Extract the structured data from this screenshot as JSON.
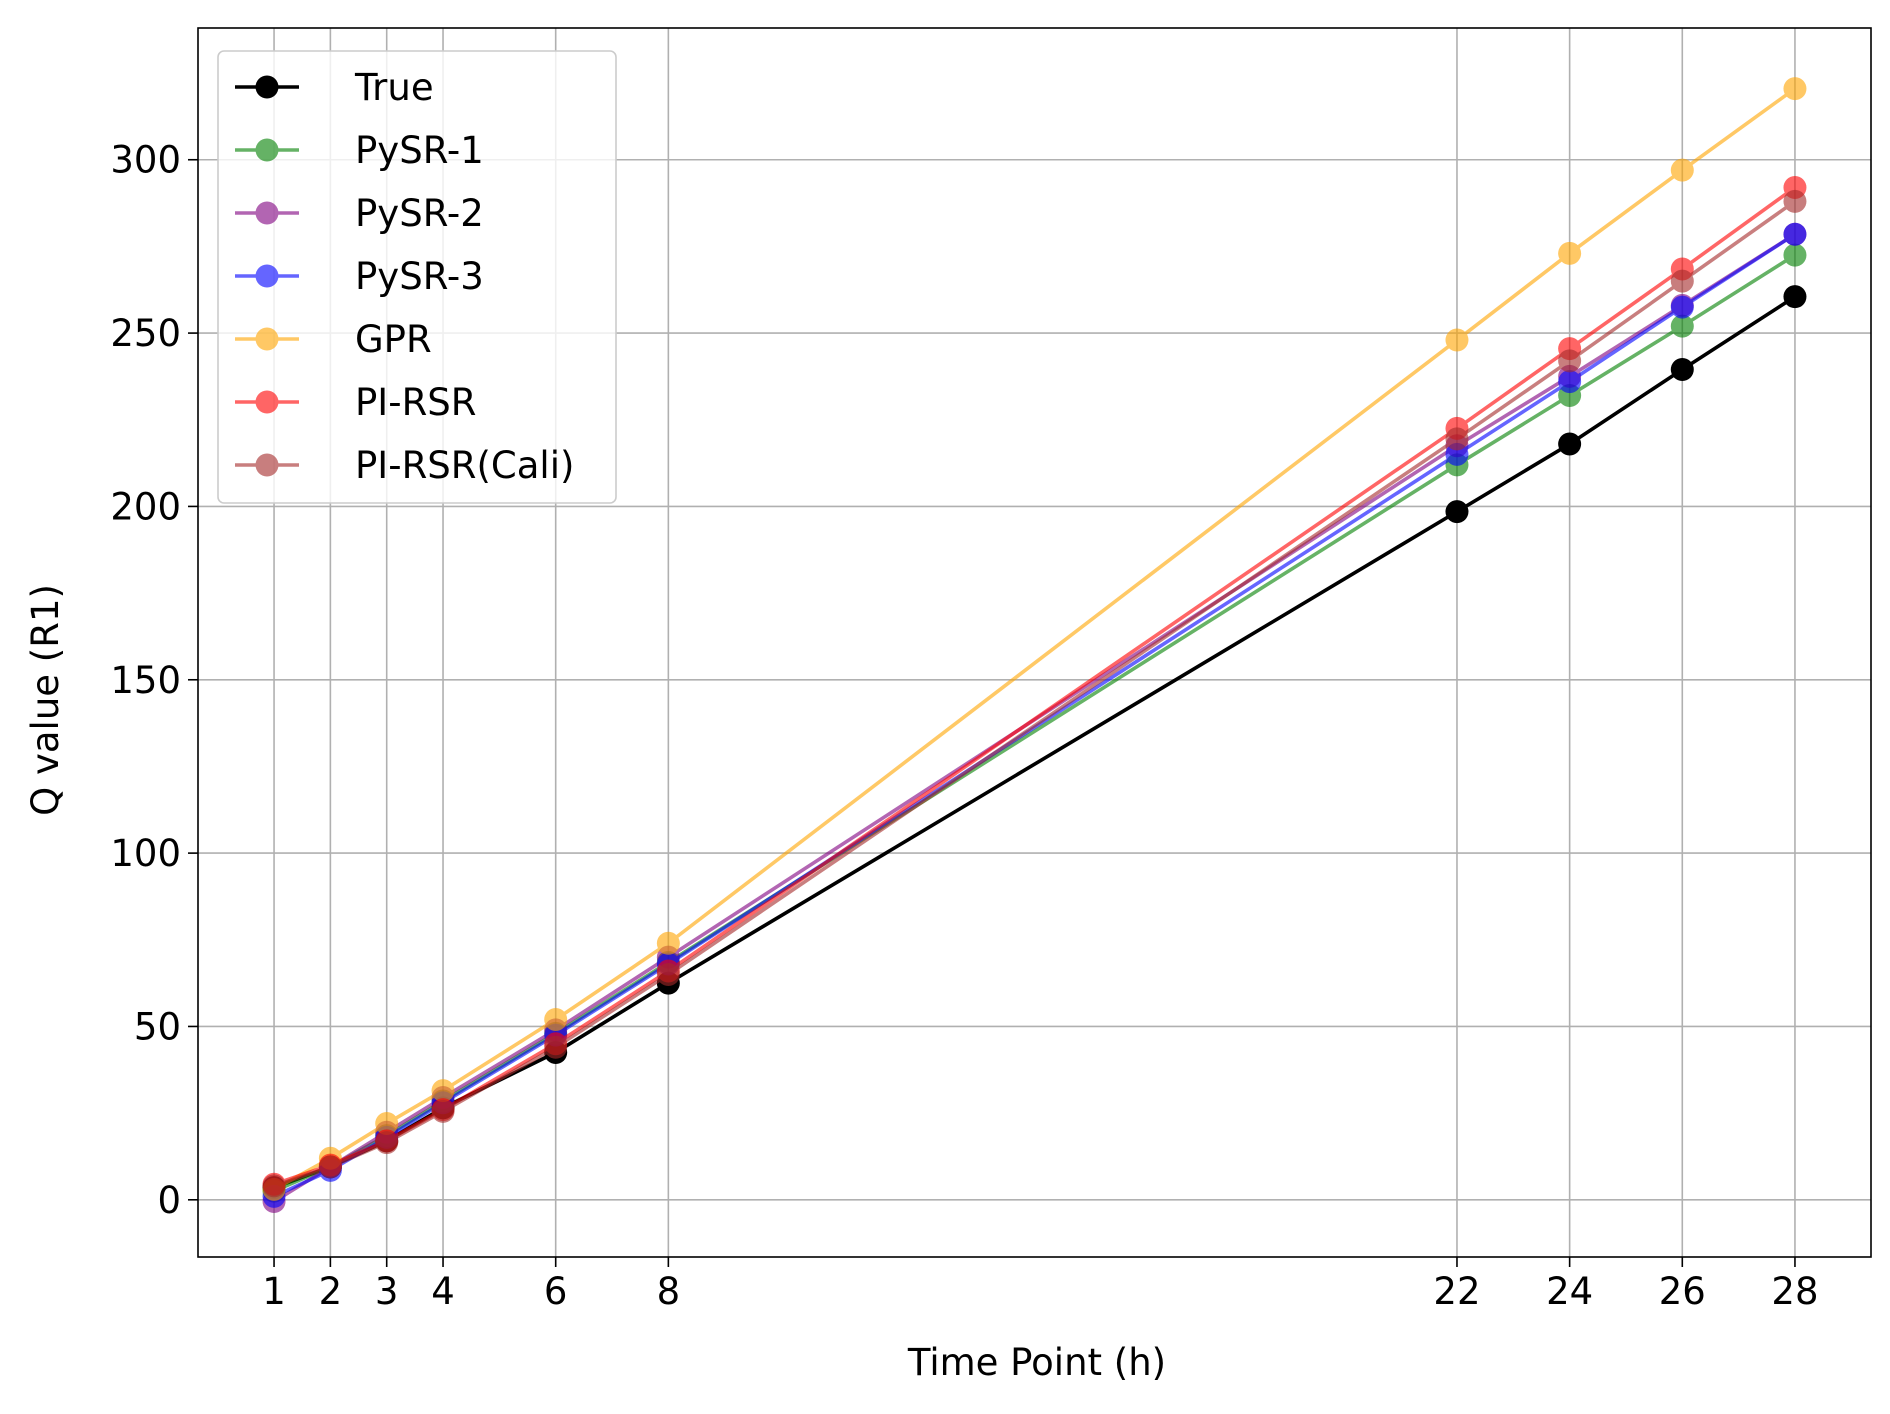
{
  "chart_data": {
    "type": "line",
    "title": "",
    "xlabel": "Time Point (h)",
    "ylabel": "Q value (R1)",
    "x": [
      1,
      2,
      3,
      4,
      6,
      8,
      22,
      24,
      26,
      28
    ],
    "xticks": [
      1,
      2,
      3,
      4,
      6,
      8,
      22,
      24,
      26,
      28
    ],
    "yticks": [
      0,
      50,
      100,
      150,
      200,
      250,
      300
    ],
    "xlim": [
      -0.35,
      29.35
    ],
    "ylim": [
      -16.5,
      338
    ],
    "grid": true,
    "legend_position": "top-left",
    "series": [
      {
        "name": "True",
        "color": "#000000",
        "alpha": 1.0,
        "values": [
          3.5,
          9.5,
          17.0,
          26.5,
          42.5,
          62.5,
          198.5,
          218.0,
          239.5,
          260.5
        ]
      },
      {
        "name": "PySR-1",
        "color": "#008000",
        "alpha": 0.6,
        "values": [
          2.5,
          9.5,
          18.5,
          28.5,
          48.0,
          68.5,
          212.0,
          232.0,
          252.0,
          272.5
        ]
      },
      {
        "name": "PySR-2",
        "color": "#800080",
        "alpha": 0.6,
        "values": [
          -0.5,
          9.5,
          19.5,
          29.5,
          49.0,
          70.0,
          217.5,
          237.5,
          258.0,
          278.5
        ]
      },
      {
        "name": "PySR-3",
        "color": "#0000ff",
        "alpha": 0.6,
        "values": [
          1.0,
          8.5,
          18.0,
          28.0,
          47.5,
          68.0,
          215.0,
          236.0,
          257.5,
          278.5
        ]
      },
      {
        "name": "GPR",
        "color": "#ffa500",
        "alpha": 0.6,
        "values": [
          3.0,
          12.0,
          22.0,
          31.5,
          52.0,
          74.0,
          248.0,
          273.0,
          297.0,
          320.5
        ]
      },
      {
        "name": "PI-RSR",
        "color": "#ff0000",
        "alpha": 0.6,
        "values": [
          4.5,
          10.0,
          17.0,
          26.0,
          45.0,
          66.0,
          222.5,
          245.5,
          268.5,
          292.0
        ]
      },
      {
        "name": "PI-RSR(Cali)",
        "color": "#a52a2a",
        "alpha": 0.6,
        "values": [
          4.0,
          9.5,
          16.5,
          25.5,
          44.0,
          65.0,
          219.5,
          242.0,
          265.0,
          288.0
        ]
      }
    ]
  }
}
